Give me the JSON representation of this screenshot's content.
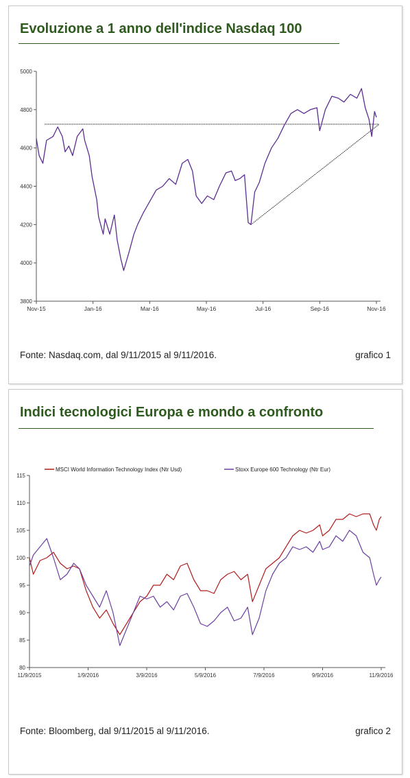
{
  "chart_data": [
    {
      "type": "line",
      "title": "Evoluzione a 1 anno dell'indice Nasdaq 100",
      "x_ticks": [
        "Nov-15",
        "Jan-16",
        "Mar-16",
        "May-16",
        "Jul-16",
        "Sep-16",
        "Nov-16"
      ],
      "y_ticks": [
        "3800",
        "4000",
        "4200",
        "4400",
        "4600",
        "4800",
        "5000"
      ],
      "ylim": [
        3800,
        5000
      ],
      "grid": false,
      "series": [
        {
          "color": "#5b2c91",
          "points": [
            [
              "2015-11-09",
              4650
            ],
            [
              "2015-11-12",
              4560
            ],
            [
              "2015-11-16",
              4520
            ],
            [
              "2015-11-20",
              4640
            ],
            [
              "2015-11-27",
              4660
            ],
            [
              "2015-12-02",
              4710
            ],
            [
              "2015-12-07",
              4660
            ],
            [
              "2015-12-10",
              4580
            ],
            [
              "2015-12-14",
              4610
            ],
            [
              "2015-12-18",
              4560
            ],
            [
              "2015-12-23",
              4660
            ],
            [
              "2015-12-29",
              4700
            ],
            [
              "2015-12-31",
              4640
            ],
            [
              "2016-01-05",
              4560
            ],
            [
              "2016-01-08",
              4450
            ],
            [
              "2016-01-13",
              4330
            ],
            [
              "2016-01-15",
              4240
            ],
            [
              "2016-01-20",
              4150
            ],
            [
              "2016-01-22",
              4230
            ],
            [
              "2016-01-27",
              4150
            ],
            [
              "2016-02-01",
              4250
            ],
            [
              "2016-02-04",
              4120
            ],
            [
              "2016-02-08",
              4020
            ],
            [
              "2016-02-11",
              3960
            ],
            [
              "2016-02-17",
              4060
            ],
            [
              "2016-02-22",
              4150
            ],
            [
              "2016-02-26",
              4200
            ],
            [
              "2016-03-03",
              4260
            ],
            [
              "2016-03-10",
              4320
            ],
            [
              "2016-03-17",
              4380
            ],
            [
              "2016-03-24",
              4400
            ],
            [
              "2016-03-31",
              4440
            ],
            [
              "2016-04-07",
              4410
            ],
            [
              "2016-04-14",
              4520
            ],
            [
              "2016-04-20",
              4540
            ],
            [
              "2016-04-25",
              4480
            ],
            [
              "2016-04-29",
              4350
            ],
            [
              "2016-05-05",
              4310
            ],
            [
              "2016-05-11",
              4350
            ],
            [
              "2016-05-18",
              4330
            ],
            [
              "2016-05-24",
              4400
            ],
            [
              "2016-05-31",
              4470
            ],
            [
              "2016-06-06",
              4480
            ],
            [
              "2016-06-10",
              4430
            ],
            [
              "2016-06-15",
              4440
            ],
            [
              "2016-06-20",
              4460
            ],
            [
              "2016-06-24",
              4210
            ],
            [
              "2016-06-27",
              4200
            ],
            [
              "2016-07-01",
              4370
            ],
            [
              "2016-07-06",
              4420
            ],
            [
              "2016-07-12",
              4520
            ],
            [
              "2016-07-19",
              4600
            ],
            [
              "2016-07-26",
              4650
            ],
            [
              "2016-08-02",
              4720
            ],
            [
              "2016-08-09",
              4780
            ],
            [
              "2016-08-16",
              4800
            ],
            [
              "2016-08-23",
              4780
            ],
            [
              "2016-08-30",
              4800
            ],
            [
              "2016-09-06",
              4810
            ],
            [
              "2016-09-09",
              4690
            ],
            [
              "2016-09-15",
              4800
            ],
            [
              "2016-09-22",
              4870
            ],
            [
              "2016-09-29",
              4860
            ],
            [
              "2016-10-05",
              4840
            ],
            [
              "2016-10-12",
              4880
            ],
            [
              "2016-10-19",
              4860
            ],
            [
              "2016-10-24",
              4910
            ],
            [
              "2016-10-28",
              4810
            ],
            [
              "2016-11-01",
              4750
            ],
            [
              "2016-11-04",
              4660
            ],
            [
              "2016-11-07",
              4790
            ],
            [
              "2016-11-09",
              4760
            ]
          ]
        }
      ],
      "reference_lines": [
        {
          "style": "horizontal",
          "y": 4724,
          "from": "2015-11-18",
          "to": "2016-11-12"
        },
        {
          "style": "trendline",
          "from": [
            "2016-06-27",
            4200
          ],
          "to": [
            "2016-11-12",
            4724
          ]
        }
      ],
      "source": "Fonte: Nasdaq.com, dal 9/11/2015 al 9/11/2016.",
      "figure_label": "grafico 1"
    },
    {
      "type": "line",
      "title": "Indici tecnologici Europa e mondo a confronto",
      "x_ticks": [
        "11/9/2015",
        "1/9/2016",
        "3/9/2016",
        "5/9/2016",
        "7/9/2016",
        "9/9/2016",
        "11/9/2016"
      ],
      "y_ticks": [
        "80",
        "85",
        "90",
        "95",
        "100",
        "105",
        "110",
        "115"
      ],
      "ylim": [
        80,
        115
      ],
      "grid": false,
      "legend_position": "top",
      "series": [
        {
          "name": "MSCI World Information Technology Index (Ntr Usd)",
          "color": "#b01c1c",
          "points": [
            [
              "2015-11-09",
              100
            ],
            [
              "2015-11-13",
              97
            ],
            [
              "2015-11-20",
              99.5
            ],
            [
              "2015-11-27",
              100
            ],
            [
              "2015-12-04",
              101
            ],
            [
              "2015-12-11",
              99
            ],
            [
              "2015-12-18",
              98
            ],
            [
              "2015-12-25",
              98.5
            ],
            [
              "2015-12-31",
              98
            ],
            [
              "2016-01-07",
              94
            ],
            [
              "2016-01-14",
              91
            ],
            [
              "2016-01-21",
              89
            ],
            [
              "2016-01-28",
              90.5
            ],
            [
              "2016-02-04",
              88
            ],
            [
              "2016-02-11",
              86
            ],
            [
              "2016-02-18",
              88
            ],
            [
              "2016-02-25",
              90
            ],
            [
              "2016-03-03",
              92
            ],
            [
              "2016-03-10",
              93
            ],
            [
              "2016-03-17",
              95
            ],
            [
              "2016-03-24",
              95
            ],
            [
              "2016-03-31",
              97
            ],
            [
              "2016-04-07",
              96
            ],
            [
              "2016-04-14",
              98.5
            ],
            [
              "2016-04-21",
              99
            ],
            [
              "2016-04-28",
              96
            ],
            [
              "2016-05-05",
              94
            ],
            [
              "2016-05-12",
              94
            ],
            [
              "2016-05-19",
              93.5
            ],
            [
              "2016-05-26",
              96
            ],
            [
              "2016-06-02",
              97
            ],
            [
              "2016-06-09",
              97.5
            ],
            [
              "2016-06-16",
              96
            ],
            [
              "2016-06-23",
              97
            ],
            [
              "2016-06-28",
              92
            ],
            [
              "2016-07-05",
              95
            ],
            [
              "2016-07-12",
              98
            ],
            [
              "2016-07-19",
              99
            ],
            [
              "2016-07-26",
              100
            ],
            [
              "2016-08-02",
              102
            ],
            [
              "2016-08-09",
              104
            ],
            [
              "2016-08-16",
              105
            ],
            [
              "2016-08-23",
              104.5
            ],
            [
              "2016-08-30",
              105
            ],
            [
              "2016-09-06",
              106
            ],
            [
              "2016-09-09",
              104
            ],
            [
              "2016-09-16",
              105
            ],
            [
              "2016-09-23",
              107
            ],
            [
              "2016-09-30",
              107
            ],
            [
              "2016-10-07",
              108
            ],
            [
              "2016-10-14",
              107.5
            ],
            [
              "2016-10-21",
              108
            ],
            [
              "2016-10-28",
              108
            ],
            [
              "2016-11-01",
              106
            ],
            [
              "2016-11-04",
              105
            ],
            [
              "2016-11-07",
              107
            ],
            [
              "2016-11-09",
              107.5
            ]
          ]
        },
        {
          "name": "Stoxx Europe 600 Technology (Ntr Eur)",
          "color": "#6b3fa0",
          "points": [
            [
              "2015-11-09",
              98.5
            ],
            [
              "2015-11-13",
              100.5
            ],
            [
              "2015-11-20",
              102
            ],
            [
              "2015-11-27",
              103.5
            ],
            [
              "2015-12-04",
              100
            ],
            [
              "2015-12-11",
              96
            ],
            [
              "2015-12-18",
              97
            ],
            [
              "2015-12-25",
              99
            ],
            [
              "2015-12-31",
              98
            ],
            [
              "2016-01-07",
              95
            ],
            [
              "2016-01-14",
              93
            ],
            [
              "2016-01-21",
              91
            ],
            [
              "2016-01-28",
              94
            ],
            [
              "2016-02-04",
              90
            ],
            [
              "2016-02-11",
              84
            ],
            [
              "2016-02-18",
              87
            ],
            [
              "2016-02-25",
              90
            ],
            [
              "2016-03-03",
              93
            ],
            [
              "2016-03-10",
              92.5
            ],
            [
              "2016-03-17",
              93
            ],
            [
              "2016-03-24",
              91
            ],
            [
              "2016-03-31",
              92
            ],
            [
              "2016-04-07",
              90.5
            ],
            [
              "2016-04-14",
              93
            ],
            [
              "2016-04-21",
              93.5
            ],
            [
              "2016-04-28",
              91
            ],
            [
              "2016-05-05",
              88
            ],
            [
              "2016-05-12",
              87.5
            ],
            [
              "2016-05-19",
              88.5
            ],
            [
              "2016-05-26",
              90
            ],
            [
              "2016-06-02",
              91
            ],
            [
              "2016-06-09",
              88.5
            ],
            [
              "2016-06-16",
              89
            ],
            [
              "2016-06-23",
              91
            ],
            [
              "2016-06-28",
              86
            ],
            [
              "2016-07-05",
              89
            ],
            [
              "2016-07-12",
              94
            ],
            [
              "2016-07-19",
              97
            ],
            [
              "2016-07-26",
              99
            ],
            [
              "2016-08-02",
              100
            ],
            [
              "2016-08-09",
              102
            ],
            [
              "2016-08-16",
              101.5
            ],
            [
              "2016-08-23",
              102
            ],
            [
              "2016-08-30",
              101
            ],
            [
              "2016-09-06",
              103
            ],
            [
              "2016-09-09",
              101.5
            ],
            [
              "2016-09-16",
              102
            ],
            [
              "2016-09-23",
              104
            ],
            [
              "2016-09-30",
              103
            ],
            [
              "2016-10-07",
              105
            ],
            [
              "2016-10-14",
              104
            ],
            [
              "2016-10-21",
              101
            ],
            [
              "2016-10-28",
              100
            ],
            [
              "2016-11-01",
              97
            ],
            [
              "2016-11-04",
              95
            ],
            [
              "2016-11-07",
              96
            ],
            [
              "2016-11-09",
              96.5
            ]
          ]
        }
      ],
      "source": "Fonte: Bloomberg, dal 9/11/2015 al 9/11/2016.",
      "figure_label": "grafico 2"
    }
  ]
}
